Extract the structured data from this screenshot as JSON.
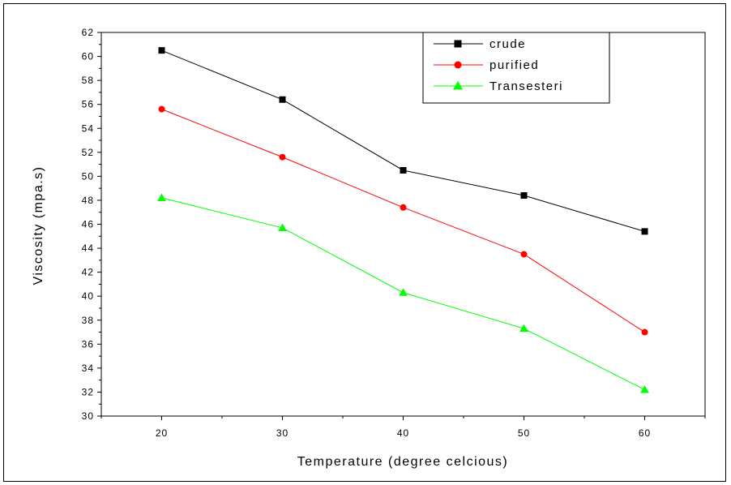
{
  "chart_data": {
    "type": "line",
    "title": "",
    "xlabel": "Temperature (degree celcious)",
    "ylabel": "Viscosity (mpa.s)",
    "x": [
      20,
      30,
      40,
      50,
      60
    ],
    "xlim": [
      15,
      65
    ],
    "ylim": [
      30,
      62
    ],
    "xticks": [
      20,
      30,
      40,
      50,
      60
    ],
    "yticks": [
      30,
      32,
      34,
      36,
      38,
      40,
      42,
      44,
      46,
      48,
      50,
      52,
      54,
      56,
      58,
      60,
      62
    ],
    "grid": false,
    "legend_position": "top-right",
    "series": [
      {
        "name": "crude",
        "values": [
          60.5,
          56.4,
          50.5,
          48.4,
          45.4
        ],
        "color": "#000000",
        "marker": "square"
      },
      {
        "name": "purified",
        "values": [
          55.6,
          51.6,
          47.4,
          43.5,
          37.0
        ],
        "color": "#ff0000",
        "marker": "circle"
      },
      {
        "name": "Transesteri",
        "values": [
          48.2,
          45.7,
          40.3,
          37.3,
          32.2
        ],
        "color": "#00ff00",
        "marker": "triangle"
      }
    ]
  }
}
